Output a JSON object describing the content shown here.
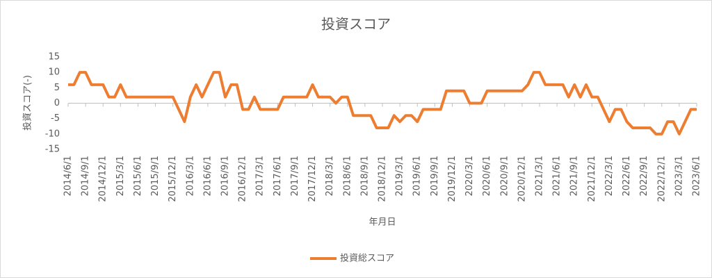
{
  "chart_data": {
    "type": "line",
    "title": "投資スコア",
    "y_label": "投資スコア(-)",
    "x_label": "年月日",
    "categories": [
      "2014/6/1",
      null,
      null,
      "2014/9/1",
      null,
      null,
      "2014/12/1",
      null,
      null,
      "2015/3/1",
      null,
      null,
      "2015/6/1",
      null,
      null,
      "2015/9/1",
      null,
      null,
      "2015/12/1",
      null,
      null,
      "2016/3/1",
      null,
      null,
      "2016/6/1",
      null,
      null,
      "2016/9/1",
      null,
      null,
      "2016/12/1",
      null,
      null,
      "2017/3/1",
      null,
      null,
      "2017/6/1",
      null,
      null,
      "2017/9/1",
      null,
      null,
      "2017/12/1",
      null,
      null,
      "2018/3/1",
      null,
      null,
      "2018/6/1",
      null,
      null,
      "2018/9/1",
      null,
      null,
      "2018/12/1",
      null,
      null,
      "2019/3/1",
      null,
      null,
      "2019/6/1",
      null,
      null,
      "2019/9/1",
      null,
      null,
      "2019/12/1",
      null,
      null,
      "2020/3/1",
      null,
      null,
      "2020/6/1",
      null,
      null,
      "2020/9/1",
      null,
      null,
      "2020/12/1",
      null,
      null,
      "2021/3/1",
      null,
      null,
      "2021/6/1",
      null,
      null,
      "2021/9/1",
      null,
      null,
      "2021/12/1",
      null,
      null,
      "2022/3/1",
      null,
      null,
      "2022/6/1",
      null,
      null,
      "2022/9/1",
      null,
      null,
      "2022/12/1",
      null,
      null,
      "2023/3/1",
      null,
      null,
      "2023/6/1"
    ],
    "series": [
      {
        "name": "投資総スコア",
        "color": "#ED7D31",
        "values": [
          6,
          6,
          10,
          10,
          6,
          6,
          6,
          2,
          2,
          6,
          2,
          2,
          2,
          2,
          2,
          2,
          2,
          2,
          2,
          -2,
          -6,
          2,
          6,
          2,
          6,
          10,
          10,
          2,
          6,
          6,
          -2,
          -2,
          2,
          -2,
          -2,
          -2,
          -2,
          2,
          2,
          2,
          2,
          2,
          6,
          2,
          2,
          2,
          0,
          2,
          2,
          -4,
          -4,
          -4,
          -4,
          -8,
          -8,
          -8,
          -4,
          -6,
          -4,
          -4,
          -6,
          -2,
          -2,
          -2,
          -2,
          4,
          4,
          4,
          4,
          0,
          0,
          0,
          4,
          4,
          4,
          4,
          4,
          4,
          4,
          6,
          10,
          10,
          6,
          6,
          6,
          6,
          2,
          6,
          2,
          6,
          2,
          2,
          -2,
          -6,
          -2,
          -2,
          -6,
          -8,
          -8,
          -8,
          -8,
          -10,
          -10,
          -6,
          -6,
          -10,
          -6,
          -2,
          -2
        ]
      }
    ],
    "ylim": [
      -15,
      15
    ],
    "yticks": [
      -15,
      -10,
      -5,
      0,
      5,
      10,
      15
    ],
    "grid": false,
    "legend": "bottom"
  }
}
